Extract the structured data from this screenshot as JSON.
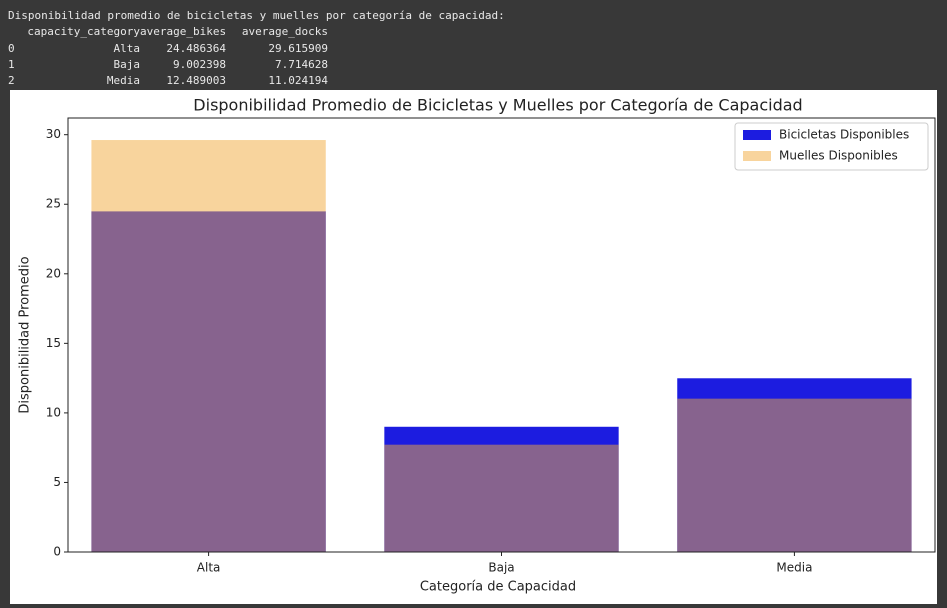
{
  "console": {
    "heading": "Disponibilidad promedio de bicicletas y muelles por categoría de capacidad:",
    "columns": [
      "capacity_category",
      "average_bikes",
      "average_docks"
    ],
    "rows": [
      [
        "0",
        "Alta",
        "24.486364",
        "29.615909"
      ],
      [
        "1",
        "Baja",
        "9.002398",
        "7.714628"
      ],
      [
        "2",
        "Media",
        "12.489003",
        "11.024194"
      ]
    ]
  },
  "chart_data": {
    "type": "bar",
    "title": "Disponibilidad Promedio de Bicicletas y Muelles por Categoría de Capacidad",
    "x_label": "Categoría de Capacidad",
    "y_label": "Disponibilidad Promedio",
    "categories": [
      "Alta",
      "Baja",
      "Media"
    ],
    "series": [
      {
        "name": "Bicicletas Disponibles",
        "color": "#1c1ce0",
        "values": [
          24.486364,
          9.002398,
          12.489003
        ]
      },
      {
        "name": "Muelles Disponibles",
        "color": "#f2a93b",
        "values": [
          29.615909,
          7.714628,
          11.024194
        ]
      }
    ],
    "ylim": [
      0,
      31.2
    ],
    "yticks": [
      0,
      5,
      10,
      15,
      20,
      25,
      30
    ],
    "grid": false,
    "legend": "upper right"
  }
}
